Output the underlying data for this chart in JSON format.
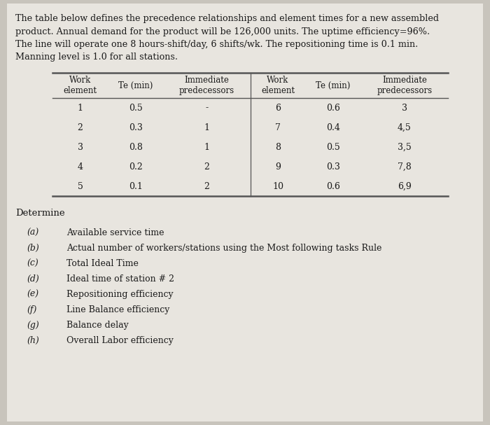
{
  "background_color": "#c8c4bc",
  "page_color": "#e8e5df",
  "intro_text": [
    "The table below defines the precedence relationships and element times for a new assembled",
    "product. Annual demand for the product will be 126,000 units. The uptime efficiency=96%.",
    "The line will operate one 8 hours-shift/day, 6 shifts/wk. The repositioning time is 0.1 min.",
    "Manning level is 1.0 for all stations."
  ],
  "table_col_headers_left": [
    "Work\nelement",
    "Te (min)",
    "Immediate\npredecessors"
  ],
  "table_col_headers_right": [
    "Work\nelement",
    "Te (min)",
    "Immediate\npredecessors"
  ],
  "table_data_left": [
    [
      "1",
      "0.5",
      "-"
    ],
    [
      "2",
      "0.3",
      "1"
    ],
    [
      "3",
      "0.8",
      "1"
    ],
    [
      "4",
      "0.2",
      "2"
    ],
    [
      "5",
      "0.1",
      "2"
    ]
  ],
  "table_data_right": [
    [
      "6",
      "0.6",
      "3"
    ],
    [
      "7",
      "0.4",
      "4,5"
    ],
    [
      "8",
      "0.5",
      "3,5"
    ],
    [
      "9",
      "0.3",
      "7,8"
    ],
    [
      "10",
      "0.6",
      "6,9"
    ]
  ],
  "determine_label": "Determine",
  "questions": [
    [
      "(a)",
      "Available service time"
    ],
    [
      "(b)",
      "Actual number of workers/stations using the Most following tasks Rule"
    ],
    [
      "(c)",
      "Total Ideal Time"
    ],
    [
      "(d)",
      "Ideal time of station # 2"
    ],
    [
      "(e)",
      "Repositioning efficiency"
    ],
    [
      "(f)",
      "Line Balance efficiency"
    ],
    [
      "(g)",
      "Balance delay"
    ],
    [
      "(h)",
      "Overall Labor efficiency"
    ]
  ],
  "font_size_intro": 9.2,
  "font_size_header": 8.5,
  "font_size_data": 9.0,
  "font_size_determine": 9.5,
  "font_size_questions": 9.0,
  "text_color": "#1a1a1a",
  "line_color": "#555555"
}
